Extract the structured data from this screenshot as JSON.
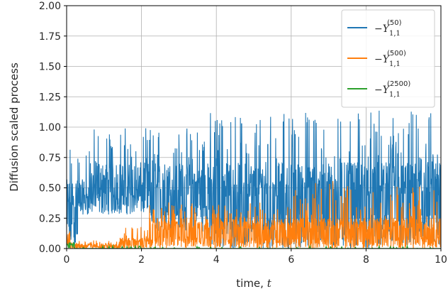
{
  "chart_data": {
    "type": "line",
    "title": "",
    "xlabel": "time, ",
    "xlabel_var": "t",
    "ylabel": "Diffusion scaled process",
    "xlim": [
      0,
      10
    ],
    "ylim": [
      0,
      2
    ],
    "xticks": [
      0,
      2,
      4,
      6,
      8,
      10
    ],
    "yticks": [
      0.0,
      0.25,
      0.5,
      0.75,
      1.0,
      1.25,
      1.5,
      1.75,
      2.0
    ],
    "xtick_labels": [
      "0",
      "2",
      "4",
      "6",
      "8",
      "10"
    ],
    "ytick_labels": [
      "0.00",
      "0.25",
      "0.50",
      "0.75",
      "1.00",
      "1.25",
      "1.50",
      "1.75",
      "2.00"
    ],
    "grid": true,
    "legend_position": "top-right",
    "series": [
      {
        "legend_prefix": "−Y",
        "legend_sub": "1,1",
        "legend_sup": "(50)",
        "color": "#1f77b4",
        "segments": [
          {
            "x_start": 0.0,
            "x_end": 0.3,
            "low": 0.0,
            "typical": 0.57,
            "peak": 0.85
          },
          {
            "x_start": 0.3,
            "x_end": 0.6,
            "low": 0.28,
            "typical": 0.57,
            "peak": 0.85
          },
          {
            "x_start": 0.6,
            "x_end": 1.3,
            "low": 0.28,
            "typical": 0.71,
            "peak": 1.0
          },
          {
            "x_start": 1.3,
            "x_end": 2.2,
            "low": 0.28,
            "typical": 0.71,
            "peak": 1.0
          },
          {
            "x_start": 2.2,
            "x_end": 3.8,
            "low": 0.14,
            "typical": 0.71,
            "peak": 1.0
          },
          {
            "x_start": 3.8,
            "x_end": 3.82,
            "low": 0.14,
            "typical": 0.85,
            "peak": 1.27
          },
          {
            "x_start": 3.82,
            "x_end": 10.0,
            "low": 0.0,
            "typical": 0.71,
            "peak": 1.14
          }
        ]
      },
      {
        "legend_prefix": "−Y",
        "legend_sub": "1,1",
        "legend_sup": "(500)",
        "color": "#ff7f0e",
        "segments": [
          {
            "x_start": 0.0,
            "x_end": 0.1,
            "low": 0.0,
            "typical": 0.14,
            "peak": 0.16
          },
          {
            "x_start": 0.1,
            "x_end": 1.4,
            "low": 0.0,
            "typical": 0.04,
            "peak": 0.07
          },
          {
            "x_start": 1.4,
            "x_end": 2.2,
            "low": 0.0,
            "typical": 0.09,
            "peak": 0.18
          },
          {
            "x_start": 2.2,
            "x_end": 6.0,
            "low": 0.0,
            "typical": 0.25,
            "peak": 0.38
          },
          {
            "x_start": 6.0,
            "x_end": 10.0,
            "low": 0.0,
            "typical": 0.25,
            "peak": 0.57
          }
        ]
      },
      {
        "legend_prefix": "−Y",
        "legend_sub": "1,1",
        "legend_sup": "(2500)",
        "color": "#2ca02c",
        "segments": [
          {
            "x_start": 0.0,
            "x_end": 0.2,
            "low": 0.0,
            "typical": 0.04,
            "peak": 0.06
          },
          {
            "x_start": 0.2,
            "x_end": 10.0,
            "low": 0.0,
            "typical": 0.0,
            "peak": 0.02
          }
        ]
      }
    ]
  }
}
